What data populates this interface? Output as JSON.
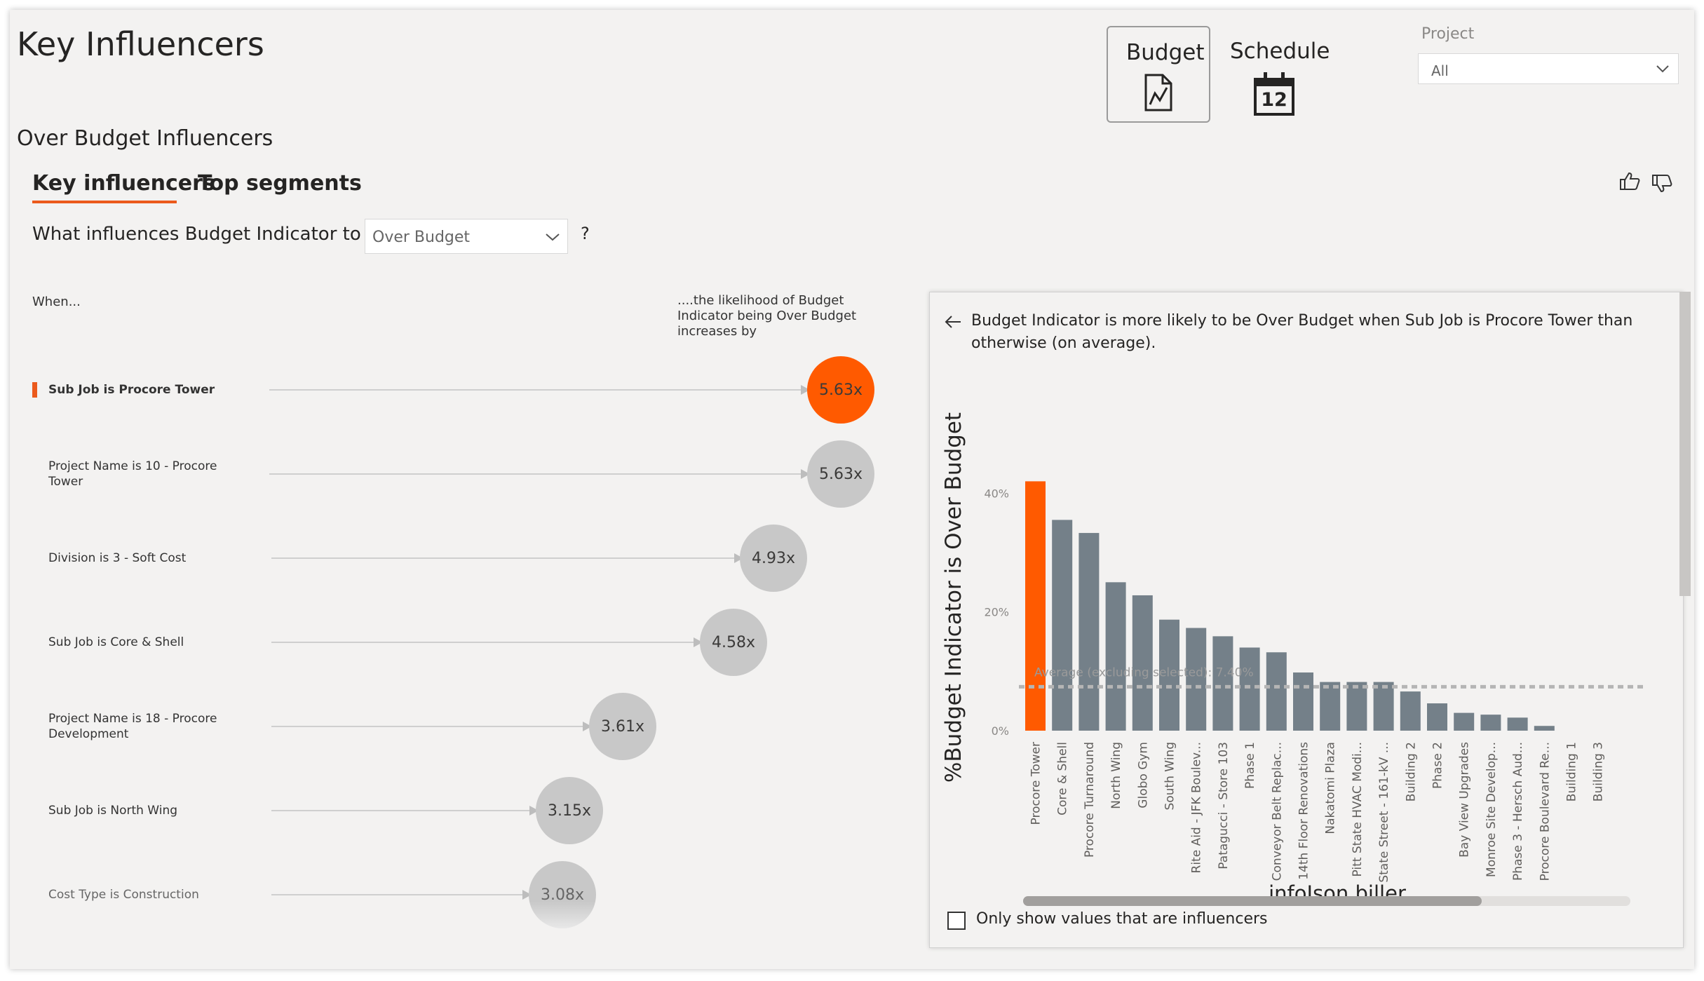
{
  "page_title": "Key Influencers",
  "nav": {
    "budget_label": "Budget",
    "schedule_label": "Schedule",
    "calendar_day": "12"
  },
  "filter": {
    "label": "Project",
    "value": "All"
  },
  "section_title": "Over Budget Influencers",
  "tabs": [
    {
      "label": "Key influencers",
      "active": true
    },
    {
      "label": "Top segments",
      "active": false
    }
  ],
  "question": {
    "prefix": "What influences Budget Indicator to be",
    "selected": "Over Budget",
    "suffix": "?"
  },
  "columns": {
    "when": "When...",
    "likelihood": "....the likelihood of Budget Indicator being Over Budget increases by"
  },
  "influencers": [
    {
      "label": "Sub Job is Procore Tower",
      "value": "5.63x",
      "selected": true
    },
    {
      "label": "Project Name is 10 - Procore Tower",
      "value": "5.63x",
      "selected": false
    },
    {
      "label": "Division is 3 - Soft Cost",
      "value": "4.93x",
      "selected": false
    },
    {
      "label": "Sub Job is Core & Shell",
      "value": "4.58x",
      "selected": false
    },
    {
      "label": "Project Name is 18 - Procore Development",
      "value": "3.61x",
      "selected": false
    },
    {
      "label": "Sub Job is North Wing",
      "value": "3.15x",
      "selected": false
    },
    {
      "label": "Cost Type is Construction",
      "value": "3.08x",
      "selected": false
    }
  ],
  "detail": {
    "title": "Budget Indicator is more likely to be Over Budget when Sub Job is Procore Tower than otherwise (on average).",
    "checkbox_label": "Only show values that are influencers",
    "checkbox_checked": false
  },
  "chart_data": {
    "type": "bar",
    "ylabel": "%Budget Indicator is Over Budget",
    "xlabel": "infoJson.biller",
    "yticks": [
      "0%",
      "20%",
      "40%"
    ],
    "ylim": [
      0,
      45
    ],
    "average_label": "Average (excluding selected): 7.40%",
    "average_value": 7.4,
    "highlight_index": 0,
    "colors": {
      "highlight": "#FF5A00",
      "bar": "#748089",
      "average_line": "#B5B5B5"
    },
    "categories": [
      "Procore Tower",
      "Core & Shell",
      "Procore Turnaround",
      "North Wing",
      "Globo Gym",
      "South Wing",
      "Rite Aid - JFK Boulev...",
      "Patagucci - Store 103",
      "Phase 1",
      "Conveyor Belt Replac...",
      "14th Floor Renovations",
      "Nakatomi Plaza",
      "Pitt State HVAC Modi...",
      "State Street - 161-kV ...",
      "Building 2",
      "Phase 2",
      "Bay View Upgrades",
      "Monroe Site Develop...",
      "Phase 3 - Hersch Aud...",
      "Procore Boulevard Re...",
      "Building 1",
      "Building 3"
    ],
    "values": [
      42,
      35.5,
      33.3,
      25,
      22.8,
      18.7,
      17.3,
      15.9,
      14,
      13.2,
      9.8,
      8.2,
      8.2,
      8.2,
      6.6,
      4.6,
      3,
      2.7,
      2.2,
      0.8,
      0,
      0
    ]
  }
}
